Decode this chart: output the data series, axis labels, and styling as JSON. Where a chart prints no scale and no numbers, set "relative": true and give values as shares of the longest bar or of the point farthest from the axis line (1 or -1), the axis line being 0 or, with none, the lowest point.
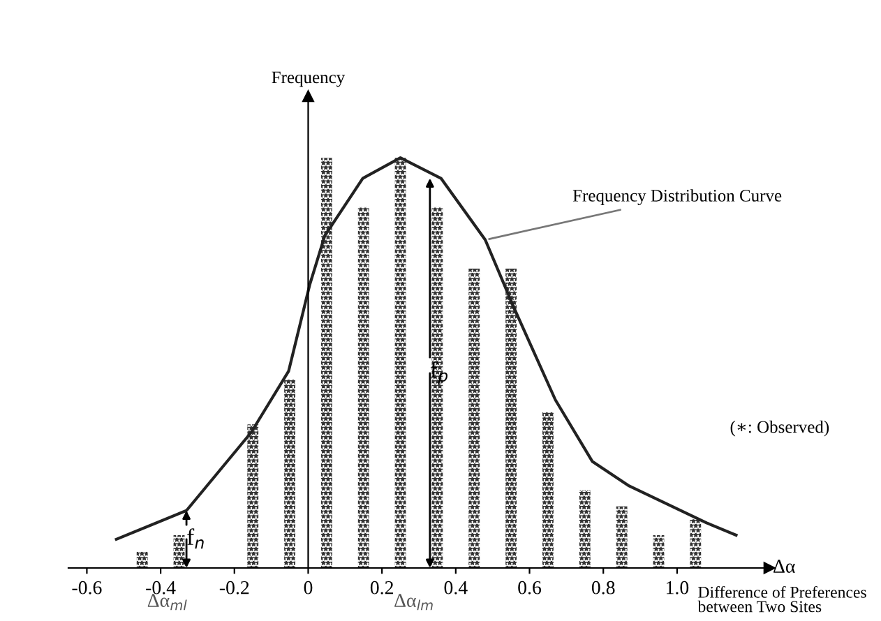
{
  "chart_data": {
    "type": "bar",
    "relative": true,
    "xlabel": "Δα",
    "ylabel": "Frequency",
    "xlim": [
      -0.65,
      1.25
    ],
    "xticks": [
      -0.6,
      -0.4,
      -0.2,
      0,
      0.2,
      0.4,
      0.6,
      0.8,
      {
        "value": 1.0,
        "label": "1.0"
      }
    ],
    "series": [
      {
        "color": "#333333",
        "x": [
          -0.45,
          -0.35,
          -0.15,
          -0.05,
          0.05,
          0.15,
          0.25,
          0.35,
          0.45,
          0.55,
          0.65,
          0.75,
          0.85,
          0.95,
          1.05
        ],
        "values": [
          0.04,
          0.08,
          0.35,
          0.46,
          1.0,
          0.88,
          1.0,
          0.88,
          0.73,
          0.73,
          0.38,
          0.19,
          0.15,
          0.08,
          0.12
        ]
      },
      {
        "type": "line",
        "name": "Frequency Distribution Curve",
        "color": "#222222",
        "x": [
          -0.52,
          -0.33,
          -0.155,
          -0.053,
          0.004,
          0.045,
          0.148,
          0.25,
          0.36,
          0.48,
          0.56,
          0.67,
          0.77,
          0.87,
          1.08,
          1.16
        ],
        "values": [
          0.07,
          0.14,
          0.33,
          0.48,
          0.69,
          0.81,
          0.95,
          1.0,
          0.95,
          0.8,
          0.63,
          0.41,
          0.26,
          0.2,
          0.11,
          0.08
        ]
      }
    ],
    "annotations": [
      {
        "text": "f$_{n}$",
        "x": -0.33,
        "y": 0.14
      },
      {
        "text": "f$_{p}$",
        "x": 0.33,
        "y": 0.95
      },
      "Δα$_{ml}$",
      "Δα$_{lm}$",
      "(∗: Observed)",
      "Difference of Preferences\nbetween Two Sites"
    ]
  }
}
